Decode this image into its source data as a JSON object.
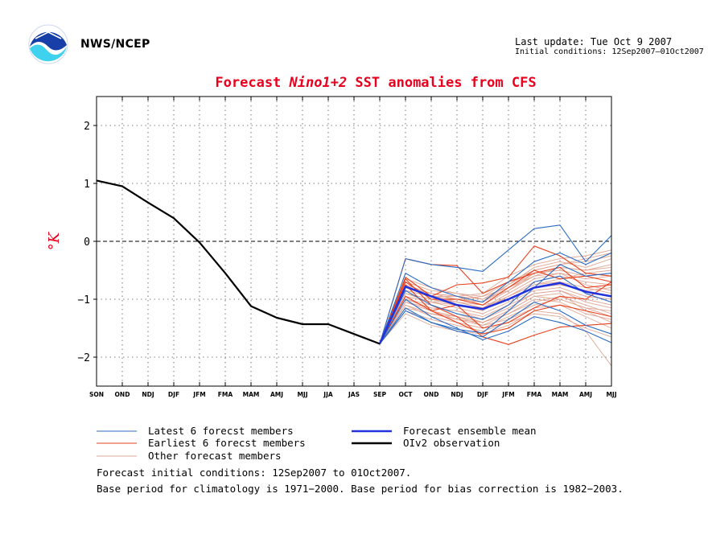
{
  "header": {
    "org": "NWS/NCEP",
    "last_update": "Last update: Tue Oct 9 2007",
    "initial_conditions": "Initial conditions: 12Sep2007–01Oct2007"
  },
  "footer": {
    "line1": "Forecast initial conditions: 12Sep2007 to 01Oct2007.",
    "line2": "Base period for climatology is 1971−2000. Base period for bias correction is 1982−2003."
  },
  "colors": {
    "latest": "#2b6cc4",
    "earliest": "#e8401c",
    "other": "#e0a796",
    "mean": "#2233dd",
    "obs": "#000000",
    "title": "#e8001e"
  },
  "chart_data": {
    "type": "line",
    "title_parts": [
      "Forecast ",
      "Nino1+2",
      " SST anomalies from CFS"
    ],
    "ylabel": "°K",
    "ylim": [
      -2.5,
      2.5
    ],
    "yticks": [
      -2,
      -1,
      0,
      1,
      2
    ],
    "grid": true,
    "zero_line": "dashed",
    "categories": [
      "SON",
      "OND",
      "NDJ",
      "DJF",
      "JFM",
      "FMA",
      "MAM",
      "AMJ",
      "MJJ",
      "JJA",
      "JAS",
      "SEP",
      "OCT",
      "OND",
      "NDJ",
      "DJF",
      "JFM",
      "FMA",
      "MAM",
      "AMJ",
      "MJJ"
    ],
    "legend": [
      {
        "label": "Latest 6 forecst members",
        "color_key": "latest",
        "weight": "thin"
      },
      {
        "label": "Forecast ensemble mean",
        "color_key": "mean",
        "weight": "thick"
      },
      {
        "label": "Earliest 6 forecst members",
        "color_key": "earliest",
        "weight": "thin"
      },
      {
        "label": "OIv2 observation",
        "color_key": "obs",
        "weight": "thick"
      },
      {
        "label": "Other forecast members",
        "color_key": "other",
        "weight": "thin"
      }
    ],
    "observation": {
      "x_start": 0,
      "values": [
        1.05,
        0.95,
        0.67,
        0.4,
        -0.02,
        -0.55,
        -1.12,
        -1.32,
        -1.43,
        -1.43,
        -1.6,
        -1.77
      ]
    },
    "ensemble_mean": {
      "x_start": 11,
      "values": [
        -1.77,
        -0.78,
        -0.95,
        -1.1,
        -1.17,
        -1.0,
        -0.8,
        -0.72,
        -0.87,
        -0.95
      ]
    },
    "latest_members": {
      "x_start": 11,
      "values": [
        [
          -1.77,
          -0.3,
          -0.4,
          -0.45,
          -0.52,
          -0.15,
          0.22,
          0.28,
          -0.35,
          0.1
        ],
        [
          -1.77,
          -1.2,
          -1.4,
          -1.52,
          -1.58,
          -1.2,
          -0.8,
          -0.4,
          -0.6,
          -0.55
        ],
        [
          -1.77,
          -0.85,
          -1.1,
          -1.25,
          -1.35,
          -1.1,
          -0.7,
          -0.6,
          -0.9,
          -1.05
        ],
        [
          -1.77,
          -1.0,
          -1.3,
          -1.5,
          -1.7,
          -1.55,
          -1.3,
          -1.4,
          -1.55,
          -1.75
        ],
        [
          -1.77,
          -0.55,
          -0.8,
          -0.95,
          -1.05,
          -0.7,
          -0.35,
          -0.2,
          -0.4,
          -0.2
        ],
        [
          -1.77,
          -1.15,
          -1.4,
          -1.55,
          -1.65,
          -1.35,
          -1.05,
          -1.2,
          -1.45,
          -1.6
        ]
      ]
    },
    "earliest_members": {
      "x_start": 11,
      "values": [
        [
          -1.77,
          -0.3,
          -0.4,
          -0.42,
          -0.9,
          -0.7,
          -0.55,
          -0.45,
          -0.8,
          -0.75
        ],
        [
          -1.77,
          -0.65,
          -1.1,
          -1.3,
          -1.65,
          -1.78,
          -1.62,
          -1.48,
          -1.45,
          -1.42
        ],
        [
          -1.77,
          -0.7,
          -1.0,
          -1.0,
          -1.1,
          -0.8,
          -0.5,
          -0.65,
          -0.6,
          -0.7
        ],
        [
          -1.77,
          -0.75,
          -1.2,
          -1.4,
          -1.6,
          -1.5,
          -1.2,
          -1.1,
          -1.2,
          -1.3
        ],
        [
          -1.77,
          -0.62,
          -0.95,
          -0.75,
          -0.72,
          -0.62,
          -0.08,
          -0.25,
          -0.55,
          -0.6
        ],
        [
          -1.77,
          -0.95,
          -1.2,
          -1.1,
          -1.5,
          -1.4,
          -1.15,
          -0.95,
          -1.0,
          -0.7
        ]
      ]
    },
    "other_members": {
      "x_start": 11,
      "values": [
        [
          -1.77,
          -0.9,
          -1.05,
          -1.0,
          -0.95,
          -0.8,
          -0.6,
          -0.55,
          -0.75,
          -0.85
        ],
        [
          -1.77,
          -1.05,
          -1.15,
          -1.2,
          -1.3,
          -1.1,
          -0.9,
          -0.85,
          -1.0,
          -1.1
        ],
        [
          -1.77,
          -0.8,
          -0.95,
          -1.05,
          -1.15,
          -0.95,
          -0.75,
          -0.65,
          -0.55,
          -0.5
        ],
        [
          -1.77,
          -1.1,
          -1.3,
          -1.4,
          -1.5,
          -1.3,
          -1.1,
          -1.0,
          -1.15,
          -1.2
        ],
        [
          -1.77,
          -0.7,
          -0.85,
          -0.9,
          -1.0,
          -0.85,
          -0.6,
          -0.45,
          -0.5,
          -0.4
        ],
        [
          -1.77,
          -1.0,
          -1.1,
          -1.25,
          -1.4,
          -1.2,
          -0.95,
          -0.9,
          -1.2,
          -1.4
        ],
        [
          -1.77,
          -0.85,
          -0.95,
          -0.95,
          -0.9,
          -0.6,
          -0.4,
          -0.3,
          -0.25,
          -0.15
        ],
        [
          -1.77,
          -1.2,
          -1.35,
          -1.45,
          -1.55,
          -1.4,
          -1.25,
          -1.3,
          -1.5,
          -1.65
        ],
        [
          -1.77,
          -0.95,
          -1.05,
          -1.15,
          -1.25,
          -1.05,
          -0.85,
          -0.8,
          -0.95,
          -1.0
        ],
        [
          -1.77,
          -0.75,
          -0.9,
          -1.0,
          -1.05,
          -0.75,
          -0.45,
          -0.35,
          -0.45,
          -0.3
        ],
        [
          -1.77,
          -1.05,
          -1.2,
          -1.35,
          -1.45,
          -1.25,
          -1.0,
          -1.05,
          -1.25,
          -1.35
        ],
        [
          -1.77,
          -0.9,
          -1.0,
          -1.1,
          -1.2,
          -0.95,
          -0.7,
          -0.6,
          -0.7,
          -0.75
        ],
        [
          -1.77,
          -0.8,
          -0.9,
          -0.95,
          -1.1,
          -1.0,
          -0.8,
          -0.75,
          -0.85,
          -0.8
        ],
        [
          -1.77,
          -1.15,
          -1.25,
          -1.3,
          -1.45,
          -1.35,
          -1.15,
          -1.1,
          -1.3,
          -1.5
        ],
        [
          -1.77,
          -0.65,
          -0.8,
          -0.9,
          -0.95,
          -0.7,
          -0.5,
          -0.4,
          -0.35,
          -0.25
        ],
        [
          -1.77,
          -1.0,
          -1.15,
          -1.2,
          -1.35,
          -1.15,
          -0.9,
          -0.85,
          -1.05,
          -1.15
        ],
        [
          -1.77,
          -0.85,
          -0.95,
          -1.05,
          -1.1,
          -0.85,
          -0.55,
          -0.5,
          -0.6,
          -0.55
        ],
        [
          -1.77,
          -1.1,
          -1.25,
          -1.35,
          -1.4,
          -1.25,
          -1.05,
          -0.95,
          -1.1,
          -1.25
        ],
        [
          -1.77,
          -0.95,
          -1.05,
          -1.1,
          -1.15,
          -0.9,
          -0.65,
          -0.55,
          -0.65,
          -0.6
        ],
        [
          -1.77,
          -1.05,
          -1.2,
          -1.3,
          -1.4,
          -1.2,
          -0.95,
          -1.0,
          -1.15,
          -1.3
        ],
        [
          -1.77,
          -0.8,
          -0.95,
          -1.0,
          -1.05,
          -0.8,
          -0.55,
          -0.45,
          -0.5,
          -0.45
        ],
        [
          -1.77,
          -1.25,
          -1.45,
          -1.55,
          -1.6,
          -1.45,
          -1.2,
          -1.25,
          -1.55,
          -2.15
        ],
        [
          -1.77,
          -0.9,
          -1.0,
          -1.05,
          -1.15,
          -0.95,
          -0.75,
          -0.7,
          -0.8,
          -0.9
        ],
        [
          -1.77,
          -0.75,
          -0.9,
          -0.95,
          -1.0,
          -0.75,
          -0.5,
          -0.4,
          -0.3,
          -0.2
        ]
      ]
    }
  }
}
